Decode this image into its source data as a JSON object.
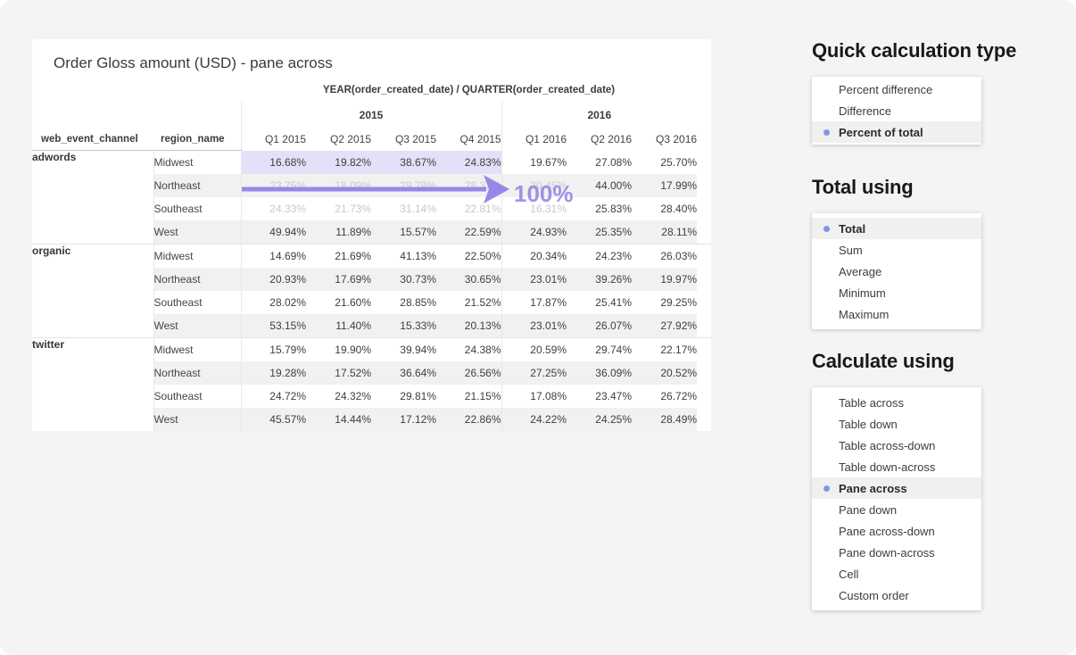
{
  "viz": {
    "title": "Order Gloss amount (USD) - pane across",
    "column_axis_label": "YEAR(order_created_date) / QUARTER(order_created_date)",
    "row_field_headers": [
      "web_event_channel",
      "region_name"
    ],
    "year_headers": [
      "2015",
      "2016"
    ],
    "quarter_headers": [
      "Q1 2015",
      "Q2 2015",
      "Q3 2015",
      "Q4 2015",
      "Q1 2016",
      "Q2 2016",
      "Q3 2016"
    ],
    "groups": [
      {
        "channel": "adwords",
        "rows": [
          {
            "region": "Midwest",
            "values": [
              "16.68%",
              "19.82%",
              "38.67%",
              "24.83%",
              "19.67%",
              "27.08%",
              "25.70%"
            ],
            "highlight": [
              0,
              1,
              2,
              3
            ]
          },
          {
            "region": "Northeast",
            "values": [
              "23.75%",
              "18.09%",
              "29.79%",
              "28.37%",
              "20.45%",
              "44.00%",
              "17.99%"
            ],
            "faded": [
              0,
              1,
              2,
              3,
              4
            ]
          },
          {
            "region": "Southeast",
            "values": [
              "24.33%",
              "21.73%",
              "31.14%",
              "22.81%",
              "16.31%",
              "25.83%",
              "28.40%"
            ],
            "faded": [
              0,
              1,
              2,
              3,
              4
            ]
          },
          {
            "region": "West",
            "values": [
              "49.94%",
              "11.89%",
              "15.57%",
              "22.59%",
              "24.93%",
              "25.35%",
              "28.11%"
            ]
          }
        ]
      },
      {
        "channel": "organic",
        "rows": [
          {
            "region": "Midwest",
            "values": [
              "14.69%",
              "21.69%",
              "41.13%",
              "22.50%",
              "20.34%",
              "24.23%",
              "26.03%"
            ]
          },
          {
            "region": "Northeast",
            "values": [
              "20.93%",
              "17.69%",
              "30.73%",
              "30.65%",
              "23.01%",
              "39.26%",
              "19.97%"
            ]
          },
          {
            "region": "Southeast",
            "values": [
              "28.02%",
              "21.60%",
              "28.85%",
              "21.52%",
              "17.87%",
              "25.41%",
              "29.25%"
            ]
          },
          {
            "region": "West",
            "values": [
              "53.15%",
              "11.40%",
              "15.33%",
              "20.13%",
              "23.01%",
              "26.07%",
              "27.92%"
            ]
          }
        ]
      },
      {
        "channel": "twitter",
        "rows": [
          {
            "region": "Midwest",
            "values": [
              "15.79%",
              "19.90%",
              "39.94%",
              "24.38%",
              "20.59%",
              "29.74%",
              "22.17%"
            ]
          },
          {
            "region": "Northeast",
            "values": [
              "19.28%",
              "17.52%",
              "36.64%",
              "26.56%",
              "27.25%",
              "36.09%",
              "20.52%"
            ]
          },
          {
            "region": "Southeast",
            "values": [
              "24.72%",
              "24.32%",
              "29.81%",
              "21.15%",
              "17.08%",
              "23.47%",
              "26.72%"
            ]
          },
          {
            "region": "West",
            "values": [
              "45.57%",
              "14.44%",
              "17.12%",
              "22.86%",
              "24.22%",
              "24.25%",
              "28.49%"
            ]
          }
        ]
      }
    ],
    "annotation": {
      "label": "100%",
      "arrow_color": "#9688e9",
      "text_color": "#9181e6"
    },
    "highlight_color": "#e4e0f8"
  },
  "panels": [
    {
      "title": "Quick calculation type",
      "items": [
        {
          "label": "Percent difference",
          "selected": false
        },
        {
          "label": "Difference",
          "selected": false
        },
        {
          "label": "Percent of total",
          "selected": true
        }
      ]
    },
    {
      "title": "Total using",
      "items": [
        {
          "label": "Total",
          "selected": true
        },
        {
          "label": "Sum",
          "selected": false
        },
        {
          "label": "Average",
          "selected": false
        },
        {
          "label": "Minimum",
          "selected": false
        },
        {
          "label": "Maximum",
          "selected": false
        }
      ]
    },
    {
      "title": "Calculate using",
      "items": [
        {
          "label": "Table across",
          "selected": false
        },
        {
          "label": "Table down",
          "selected": false
        },
        {
          "label": "Table across-down",
          "selected": false
        },
        {
          "label": "Table down-across",
          "selected": false
        },
        {
          "label": "Pane across",
          "selected": true
        },
        {
          "label": "Pane down",
          "selected": false
        },
        {
          "label": "Pane across-down",
          "selected": false
        },
        {
          "label": "Pane down-across",
          "selected": false
        },
        {
          "label": "Cell",
          "selected": false
        },
        {
          "label": "Custom order",
          "selected": false
        }
      ]
    }
  ]
}
